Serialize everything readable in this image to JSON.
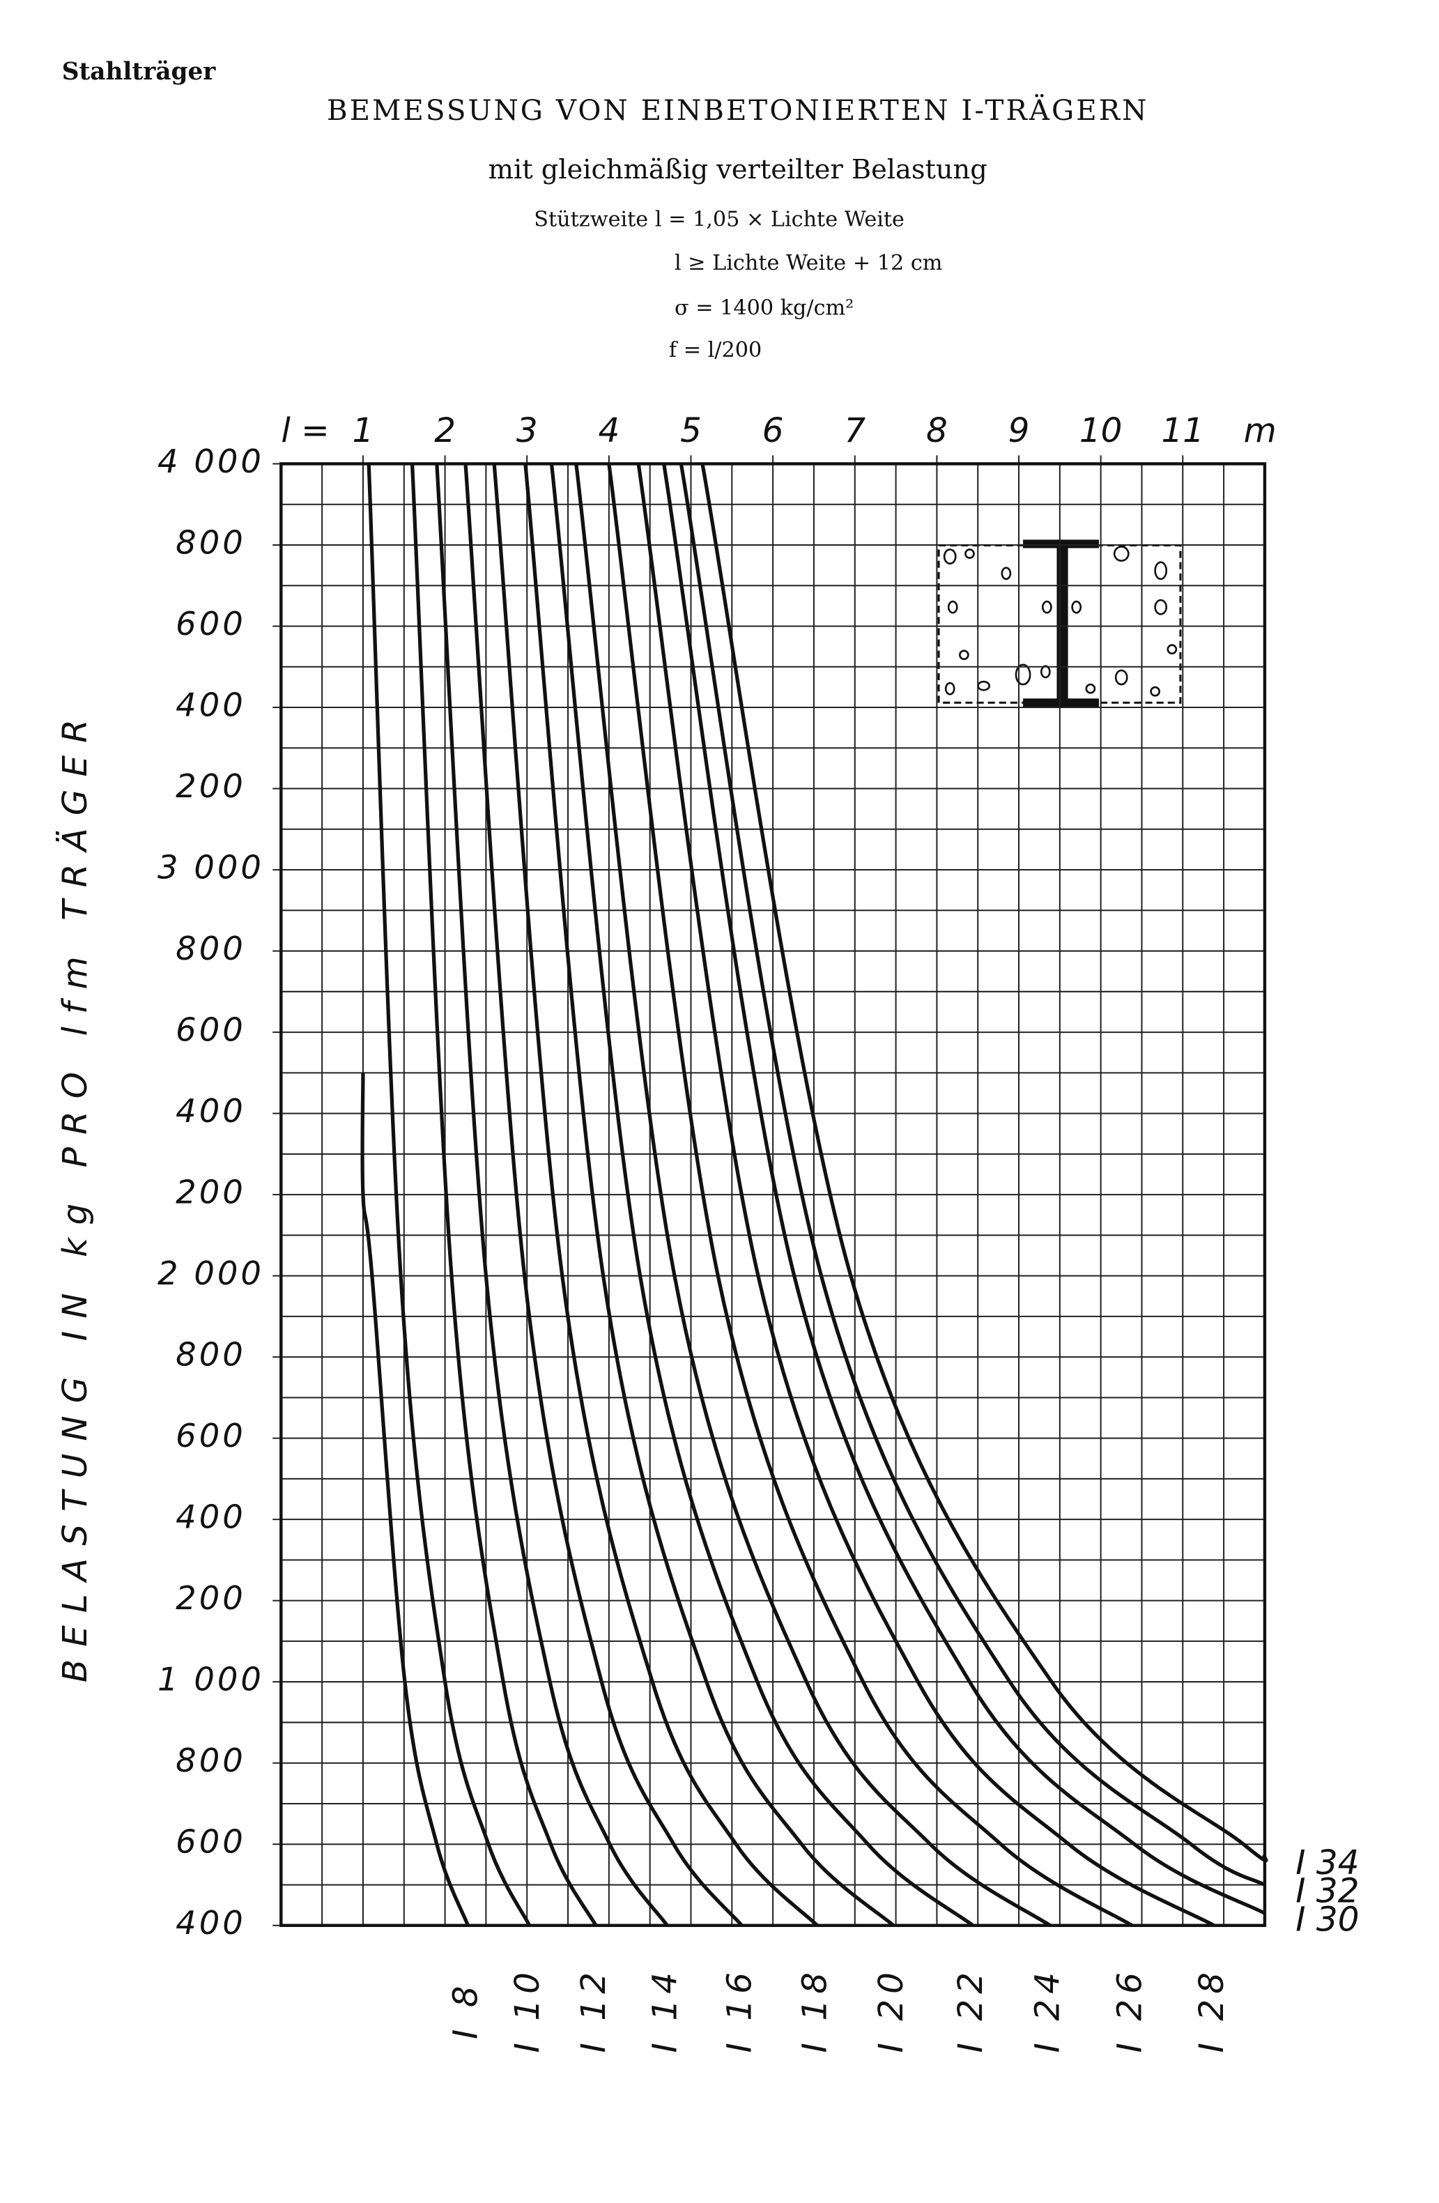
{
  "chart_data": {
    "type": "line",
    "header": "Stahlträger",
    "title": "BEMESSUNG VON EINBETONIERTEN I-TRÄGERN",
    "subtitle": "mit gleichmäßig verteilter Belastung",
    "notes": [
      "Stützweite l = 1,05 × Lichte Weite",
      "l ≥ Lichte Weite + 12 cm",
      "σ = 1400 kg/cm²",
      "f = l/200"
    ],
    "x_label_prefix": "l =",
    "x_unit": "m",
    "y_label": "BELASTUNG IN kg PRO lfm TRÄGER",
    "xlim": [
      0,
      12
    ],
    "ylim": [
      400,
      4000
    ],
    "xticks": [
      1,
      2,
      3,
      4,
      5,
      6,
      7,
      8,
      9,
      10,
      11
    ],
    "yticks": [
      {
        "value": 4000,
        "label": "4 000"
      },
      {
        "value": 3800,
        "label": "800"
      },
      {
        "value": 3600,
        "label": "600"
      },
      {
        "value": 3400,
        "label": "400"
      },
      {
        "value": 3200,
        "label": "200"
      },
      {
        "value": 3000,
        "label": "3 000"
      },
      {
        "value": 2800,
        "label": "800"
      },
      {
        "value": 2600,
        "label": "600"
      },
      {
        "value": 2400,
        "label": "400"
      },
      {
        "value": 2200,
        "label": "200"
      },
      {
        "value": 2000,
        "label": "2 000"
      },
      {
        "value": 1800,
        "label": "800"
      },
      {
        "value": 1600,
        "label": "600"
      },
      {
        "value": 1400,
        "label": "400"
      },
      {
        "value": 1200,
        "label": "200"
      },
      {
        "value": 1000,
        "label": "1 000"
      },
      {
        "value": 800,
        "label": "800"
      },
      {
        "value": 600,
        "label": "600"
      },
      400
    ],
    "grid": true,
    "xgrid_step": 0.5,
    "ygrid_step": 100,
    "color": "#111111",
    "series": [
      {
        "name": "I 8",
        "x": [
          1.0,
          1.0,
          1.11,
          1.51,
          1.9,
          2.28
        ],
        "values": [
          2500,
          2200,
          2000,
          1000,
          600,
          400
        ]
      },
      {
        "name": "I 10",
        "x": [
          1.07,
          1.46,
          2.0,
          2.53,
          3.03
        ],
        "values": [
          4000,
          2000,
          1000,
          600,
          400
        ]
      },
      {
        "name": "I 12",
        "x": [
          1.6,
          2.08,
          2.71,
          3.29,
          3.84
        ],
        "values": [
          4000,
          2000,
          1000,
          600,
          400
        ]
      },
      {
        "name": "I 14",
        "x": [
          1.9,
          2.5,
          3.28,
          4.01,
          4.71
        ],
        "values": [
          4000,
          2000,
          1000,
          600,
          400
        ]
      },
      {
        "name": "I 16",
        "x": [
          2.25,
          2.97,
          3.91,
          4.79,
          5.62
        ],
        "values": [
          4000,
          2000,
          1000,
          600,
          400
        ]
      },
      {
        "name": "I 18",
        "x": [
          2.6,
          3.43,
          4.53,
          5.55,
          6.54
        ],
        "values": [
          4000,
          2000,
          1000,
          600,
          400
        ]
      },
      {
        "name": "I 20",
        "x": [
          2.98,
          3.93,
          5.19,
          6.35,
          7.47
        ],
        "values": [
          4000,
          2000,
          1000,
          600,
          400
        ]
      },
      {
        "name": "I 22",
        "x": [
          3.3,
          4.38,
          5.81,
          7.16,
          8.44
        ],
        "values": [
          4000,
          2000,
          1000,
          600,
          400
        ]
      },
      {
        "name": "I 24",
        "x": [
          3.6,
          4.8,
          6.41,
          7.92,
          9.38
        ],
        "values": [
          4000,
          2000,
          1000,
          600,
          400
        ]
      },
      {
        "name": "I 26",
        "x": [
          4.0,
          5.33,
          7.1,
          8.78,
          10.38
        ],
        "values": [
          4000,
          2000,
          1000,
          600,
          400
        ]
      },
      {
        "name": "I 28",
        "x": [
          4.36,
          5.82,
          7.77,
          9.61,
          11.38
        ],
        "values": [
          4000,
          2000,
          1000,
          600,
          400
        ]
      },
      {
        "name": "I 30",
        "x": [
          4.67,
          6.26,
          8.4,
          10.41,
          12
        ],
        "values": [
          4000,
          2000,
          1000,
          600,
          430
        ]
      },
      {
        "name": "I 32",
        "x": [
          4.88,
          6.59,
          8.89,
          11.1,
          12
        ],
        "values": [
          4000,
          2000,
          1000,
          600,
          500
        ]
      },
      {
        "name": "I 34",
        "x": [
          5.14,
          6.95,
          9.4,
          11.74,
          12
        ],
        "values": [
          4000,
          2000,
          1000,
          600,
          570
        ]
      }
    ]
  }
}
